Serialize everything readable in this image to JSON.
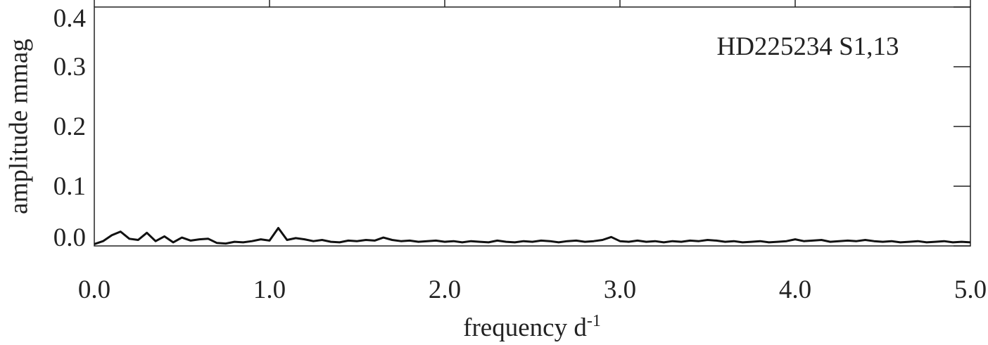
{
  "chart_data": {
    "type": "line",
    "annotation": "HD225234 S1,13",
    "xlabel": {
      "text": "frequency d",
      "superscript": "-1"
    },
    "ylabel": "amplitude mmag",
    "color": "#111111",
    "x": [
      0.0,
      0.05,
      0.1,
      0.15,
      0.2,
      0.25,
      0.3,
      0.35,
      0.4,
      0.45,
      0.5,
      0.55,
      0.6,
      0.65,
      0.7,
      0.75,
      0.8,
      0.85,
      0.9,
      0.95,
      1.0,
      1.05,
      1.1,
      1.15,
      1.2,
      1.25,
      1.3,
      1.35,
      1.4,
      1.45,
      1.5,
      1.55,
      1.6,
      1.65,
      1.7,
      1.75,
      1.8,
      1.85,
      1.9,
      1.95,
      2.0,
      2.05,
      2.1,
      2.15,
      2.2,
      2.25,
      2.3,
      2.35,
      2.4,
      2.45,
      2.5,
      2.55,
      2.6,
      2.65,
      2.7,
      2.75,
      2.8,
      2.85,
      2.9,
      2.95,
      3.0,
      3.05,
      3.1,
      3.15,
      3.2,
      3.25,
      3.3,
      3.35,
      3.4,
      3.45,
      3.5,
      3.55,
      3.6,
      3.65,
      3.7,
      3.75,
      3.8,
      3.85,
      3.9,
      3.95,
      4.0,
      4.05,
      4.1,
      4.15,
      4.2,
      4.25,
      4.3,
      4.35,
      4.4,
      4.45,
      4.5,
      4.55,
      4.6,
      4.65,
      4.7,
      4.75,
      4.8,
      4.85,
      4.9,
      4.95,
      5.0
    ],
    "values": [
      0.003,
      0.008,
      0.018,
      0.024,
      0.012,
      0.01,
      0.022,
      0.008,
      0.016,
      0.006,
      0.014,
      0.009,
      0.011,
      0.012,
      0.005,
      0.004,
      0.007,
      0.006,
      0.008,
      0.011,
      0.009,
      0.03,
      0.01,
      0.013,
      0.011,
      0.008,
      0.01,
      0.007,
      0.006,
      0.009,
      0.008,
      0.01,
      0.009,
      0.014,
      0.01,
      0.008,
      0.009,
      0.007,
      0.008,
      0.009,
      0.007,
      0.008,
      0.006,
      0.008,
      0.007,
      0.006,
      0.009,
      0.007,
      0.006,
      0.008,
      0.007,
      0.009,
      0.008,
      0.006,
      0.008,
      0.009,
      0.007,
      0.008,
      0.01,
      0.015,
      0.008,
      0.007,
      0.009,
      0.007,
      0.008,
      0.006,
      0.008,
      0.007,
      0.009,
      0.008,
      0.01,
      0.009,
      0.007,
      0.008,
      0.006,
      0.007,
      0.008,
      0.006,
      0.007,
      0.008,
      0.011,
      0.008,
      0.009,
      0.01,
      0.007,
      0.008,
      0.009,
      0.008,
      0.01,
      0.008,
      0.007,
      0.008,
      0.006,
      0.007,
      0.008,
      0.006,
      0.007,
      0.008,
      0.006,
      0.007,
      0.006
    ],
    "xlim": [
      0,
      5
    ],
    "xticks": [
      {
        "value": 0,
        "label": "0.0"
      },
      {
        "value": 1,
        "label": "1.0"
      },
      {
        "value": 2,
        "label": "2.0"
      },
      {
        "value": 3,
        "label": "3.0"
      },
      {
        "value": 4,
        "label": "4.0"
      },
      {
        "value": 5,
        "label": "5.0"
      }
    ],
    "ylim": [
      0,
      0.4
    ],
    "yticks": [
      {
        "value": 0,
        "label": "0.0"
      },
      {
        "value": 0.1,
        "label": "0.1"
      },
      {
        "value": 0.2,
        "label": "0.2"
      },
      {
        "value": 0.3,
        "label": "0.3"
      },
      {
        "value": 0.4,
        "label": "0.4"
      }
    ]
  }
}
